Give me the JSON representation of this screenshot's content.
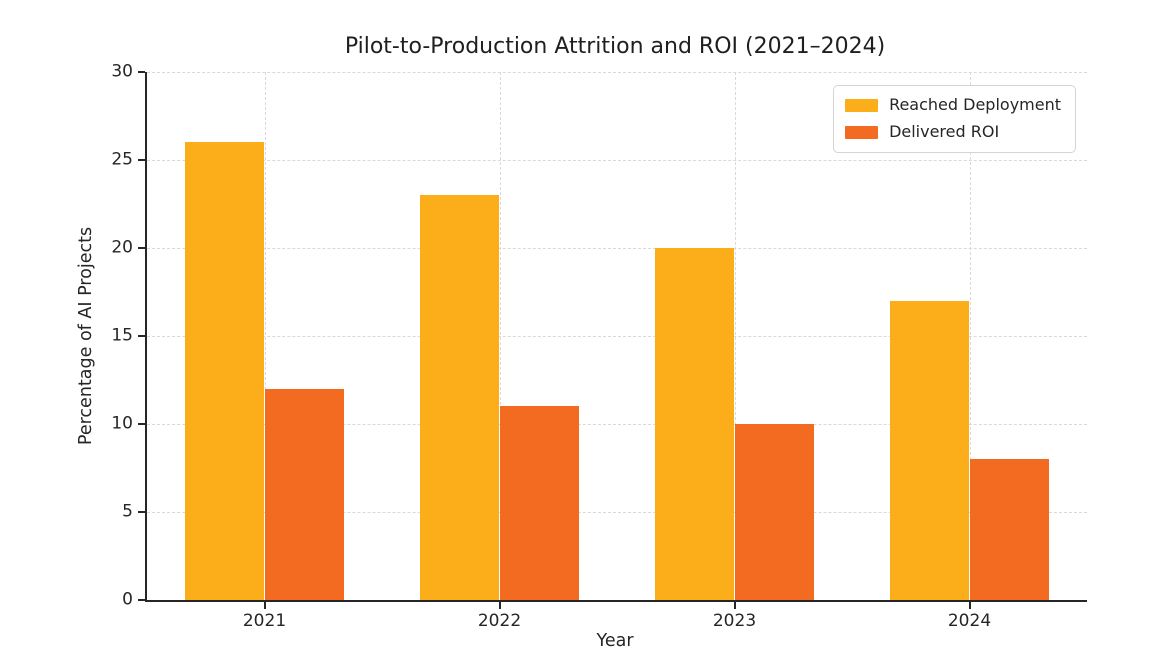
{
  "chart_data": {
    "type": "bar",
    "title": "Pilot-to-Production Attrition and ROI (2021–2024)",
    "categories": [
      "2021",
      "2022",
      "2023",
      "2024"
    ],
    "series": [
      {
        "name": "Reached Deployment",
        "color": "#FBAD1A",
        "values": [
          26,
          23,
          20,
          17
        ]
      },
      {
        "name": "Delivered ROI",
        "color": "#F36A21",
        "values": [
          12,
          11,
          10,
          8
        ]
      }
    ],
    "xlabel": "Year",
    "ylabel": "Percentage of AI Projects",
    "ylim": [
      0,
      30
    ],
    "ytick_step": 5,
    "grid": "dashed, horizontal at y-ticks and vertical at category centers",
    "legend_position": "upper right",
    "bar_width_fraction": 0.34
  },
  "colors": {
    "axis": "#262626",
    "grid": "#d9d9d9",
    "background": "#ffffff",
    "legend_border": "#d4d4d4"
  }
}
